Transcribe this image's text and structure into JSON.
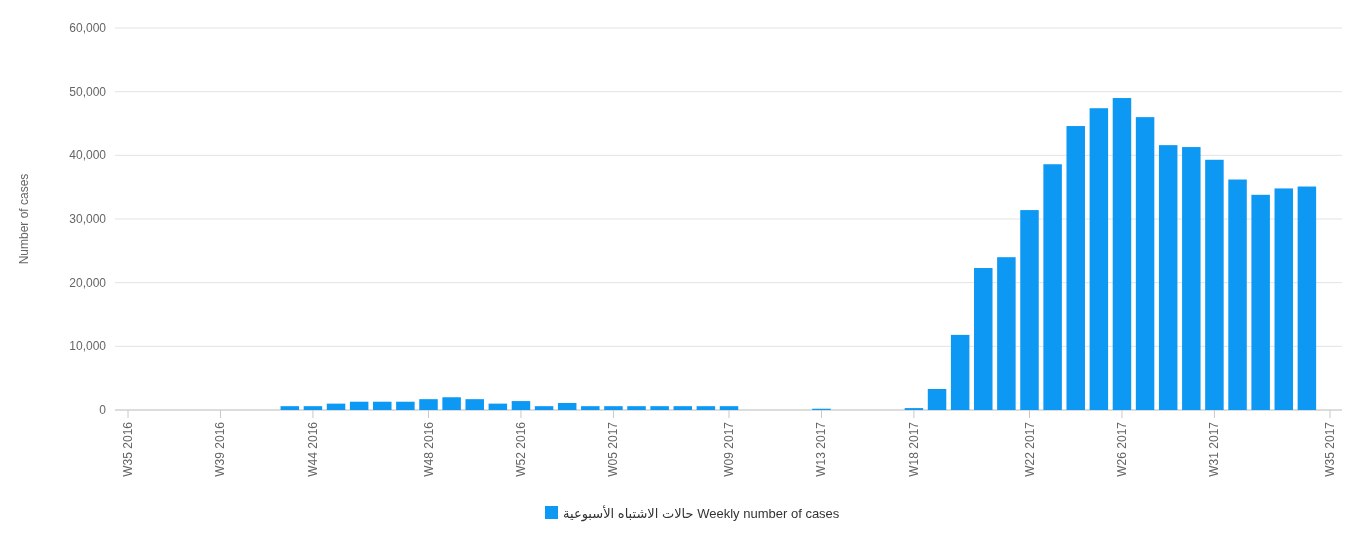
{
  "chart_data": {
    "type": "bar",
    "ylabel": "Number of cases",
    "categories": [
      "W35 2016",
      null,
      null,
      null,
      "W39 2016",
      null,
      null,
      null,
      "W44 2016",
      null,
      null,
      null,
      null,
      "W48 2016",
      null,
      null,
      null,
      "W52 2016",
      null,
      null,
      null,
      "W05 2017",
      null,
      null,
      null,
      null,
      "W09 2017",
      null,
      null,
      null,
      "W13 2017",
      null,
      null,
      null,
      "W18 2017",
      null,
      null,
      null,
      null,
      "W22 2017",
      null,
      null,
      null,
      "W26 2017",
      null,
      null,
      null,
      "W31 2017",
      null,
      null,
      null,
      null,
      "W35 2017"
    ],
    "series": [
      {
        "name": "حالات الاشتباه الأسبوعية Weekly number of cases",
        "color": "#0d98f3",
        "values": [
          null,
          null,
          null,
          null,
          null,
          null,
          null,
          600,
          600,
          1000,
          1300,
          1300,
          1300,
          1700,
          2000,
          1700,
          1000,
          1400,
          600,
          1100,
          600,
          600,
          600,
          600,
          600,
          600,
          600,
          null,
          null,
          null,
          200,
          null,
          null,
          null,
          300,
          3300,
          11800,
          22300,
          24000,
          31400,
          38600,
          44600,
          47400,
          49000,
          46000,
          41600,
          41300,
          39300,
          36200,
          33800,
          34800,
          35100,
          null
        ]
      }
    ],
    "ylim": [
      0,
      60000
    ],
    "yticks": [
      {
        "value": 0,
        "label": "0"
      },
      {
        "value": 10000,
        "label": "10,000"
      },
      {
        "value": 20000,
        "label": "20,000"
      },
      {
        "value": 30000,
        "label": "30,000"
      },
      {
        "value": 40000,
        "label": "40,000"
      },
      {
        "value": 50000,
        "label": "50,000"
      },
      {
        "value": 60000,
        "label": "60,000"
      }
    ],
    "grid": "y",
    "legend": "bottom"
  }
}
